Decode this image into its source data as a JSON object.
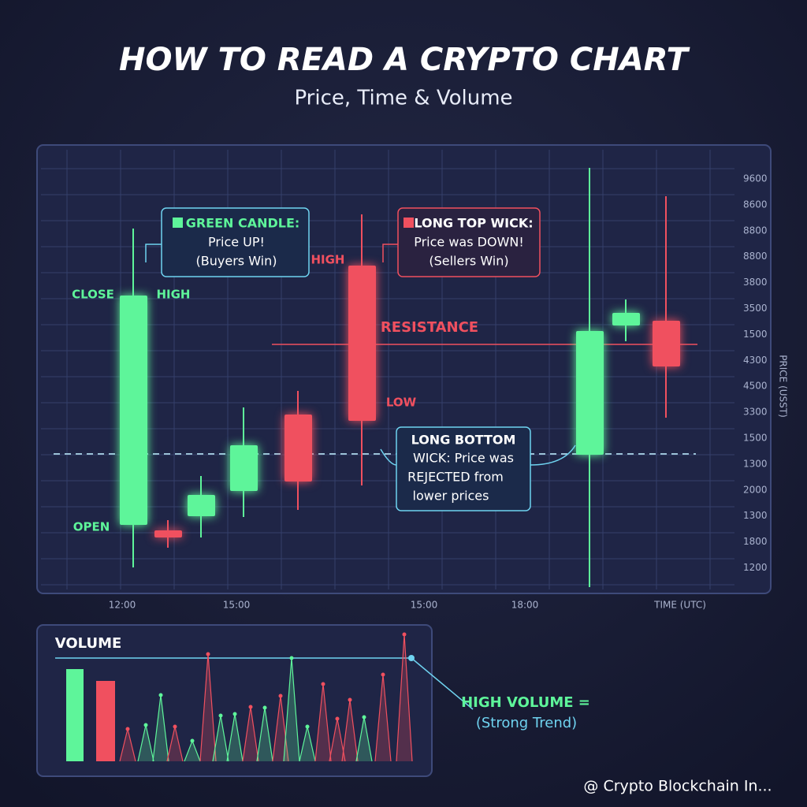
{
  "header": {
    "title": "HOW TO READ A CRYPTO CHART",
    "subtitle": "Price, Time & Volume"
  },
  "chart": {
    "y_labels": [
      "9600",
      "8600",
      "8800",
      "8800",
      "3800",
      "3500",
      "1500",
      "4300",
      "4500",
      "3300",
      "1500",
      "1300",
      "2000",
      "1300",
      "1800",
      "1200"
    ],
    "y_axis_title": "PRICE (USST)",
    "x_labels": [
      "12:00",
      "15:00",
      "15:00",
      "18:00"
    ],
    "x_axis_title": "TIME (UTC)",
    "labels": {
      "close": "CLOSE",
      "high_left": "HIGH",
      "open": "OPEN",
      "high_mid": "HIGH",
      "low": "LOW",
      "resistance": "RESISTANCE"
    },
    "callouts": {
      "green_candle": [
        "GREEN CANDLE:",
        "Price UP!",
        "(Buyers Win)"
      ],
      "top_wick": [
        "LONG TOP WICK:",
        "Price was DOWN!",
        "(Sellers Win)"
      ],
      "bottom_wick": [
        "LONG BOTTOM",
        "WICK: Price was",
        "REJECTED from",
        "lower prices"
      ]
    }
  },
  "volume": {
    "title": "VOLUME",
    "callout": [
      "HIGH VOLUME =",
      "(Strong Trend)"
    ]
  },
  "footer": {
    "credit": "@ Crypto Blockchain In..."
  }
}
